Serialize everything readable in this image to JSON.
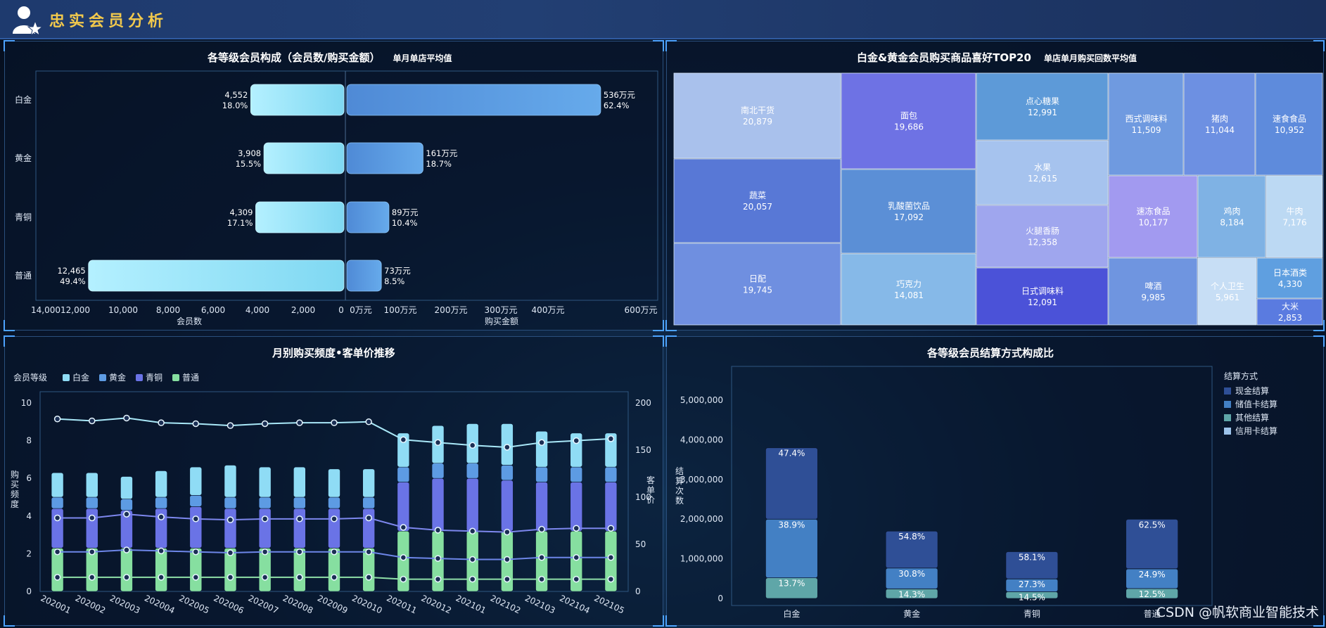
{
  "header": {
    "title": "忠实会员分析"
  },
  "panel1": {
    "title": "各等级会员构成（会员数/购买金额）",
    "subtitle": "单月单店平均值",
    "chart_data": {
      "type": "bar",
      "orientation": "horizontal-butterfly",
      "categories": [
        "白金",
        "黄金",
        "青铜",
        "普通"
      ],
      "left": {
        "name": "会员数",
        "values": [
          4552,
          3908,
          4309,
          12465
        ],
        "value_labels": [
          "4,552",
          "3,908",
          "4,309",
          "12,465"
        ],
        "pct_labels": [
          "18.0%",
          "15.5%",
          "17.1%",
          "49.4%"
        ],
        "ticks": [
          "14,000",
          "12,000",
          "10,000",
          "8,000",
          "6,000",
          "4,000",
          "2,000",
          "0"
        ],
        "xlim": [
          0,
          14000
        ]
      },
      "right": {
        "name": "购买金额",
        "unit": "万元",
        "values": [
          536,
          161,
          89,
          73
        ],
        "value_labels": [
          "536万元",
          "161万元",
          "89万元",
          "73万元"
        ],
        "pct_labels": [
          "62.4%",
          "18.7%",
          "10.4%",
          "8.5%"
        ],
        "ticks": [
          "0万元",
          "100万元",
          "200万元",
          "300万元",
          "400万元",
          "600万元"
        ],
        "tick_values": [
          0,
          100,
          200,
          300,
          400,
          600
        ],
        "xlim": [
          0,
          600
        ]
      },
      "xlabel_left": "会员数",
      "xlabel_right": "购买金额"
    }
  },
  "panel2": {
    "title": "白金&黄金会员购买商品喜好TOP20",
    "subtitle": "单店单月购买回数平均值",
    "chart_data": {
      "type": "treemap",
      "items": [
        {
          "name": "南北干货",
          "value": 20879,
          "label": "20,879",
          "color": "#a9c1ec"
        },
        {
          "name": "蔬菜",
          "value": 20057,
          "label": "20,057",
          "color": "#5878d6"
        },
        {
          "name": "日配",
          "value": 19745,
          "label": "19,745",
          "color": "#6f8fe0"
        },
        {
          "name": "面包",
          "value": 19686,
          "label": "19,686",
          "color": "#6e72e4"
        },
        {
          "name": "乳酸菌饮品",
          "value": 17092,
          "label": "17,092",
          "color": "#5b8fd6"
        },
        {
          "name": "巧克力",
          "value": 14081,
          "label": "14,081",
          "color": "#86b9e8"
        },
        {
          "name": "点心糖果",
          "value": 12991,
          "label": "12,991",
          "color": "#5d9ad8"
        },
        {
          "name": "水果",
          "value": 12615,
          "label": "12,615",
          "color": "#a6c3ee"
        },
        {
          "name": "火腿香肠",
          "value": 12358,
          "label": "12,358",
          "color": "#9fa6ee"
        },
        {
          "name": "日式调味料",
          "value": 12091,
          "label": "12,091",
          "color": "#4b52d8"
        },
        {
          "name": "西式调味料",
          "value": 11509,
          "label": "11,509",
          "color": "#6f9ae0"
        },
        {
          "name": "猪肉",
          "value": 11044,
          "label": "11,044",
          "color": "#6d90e2"
        },
        {
          "name": "速食食品",
          "value": 10952,
          "label": "10,952",
          "color": "#5e8bdc"
        },
        {
          "name": "速冻食品",
          "value": 10177,
          "label": "10,177",
          "color": "#a29af0"
        },
        {
          "name": "鸡肉",
          "value": 8184,
          "label": "8,184",
          "color": "#7fb2e4"
        },
        {
          "name": "牛肉",
          "value": 7176,
          "label": "7,176",
          "color": "#bcd9f3"
        },
        {
          "name": "啤酒",
          "value": 9985,
          "label": "9,985",
          "color": "#6f95e0"
        },
        {
          "name": "个人卫生",
          "value": 5961,
          "label": "5,961",
          "color": "#c7def5"
        },
        {
          "name": "日本酒类",
          "value": 4330,
          "label": "4,330",
          "color": "#5f9fe0"
        },
        {
          "name": "大米",
          "value": 2853,
          "label": "2,853",
          "color": "#5a7be0"
        }
      ]
    }
  },
  "panel3": {
    "title": "月别购买频度•客单价推移",
    "legend_title": "会员等级",
    "legend": [
      {
        "name": "白金",
        "color": "#8fdcf5"
      },
      {
        "name": "黄金",
        "color": "#5d9be3"
      },
      {
        "name": "青铜",
        "color": "#6a73e6"
      },
      {
        "name": "普通",
        "color": "#86dfa0"
      }
    ],
    "chart_data": {
      "type": "bar+line",
      "categories": [
        "202001",
        "202002",
        "202003",
        "202004",
        "202005",
        "202006",
        "202007",
        "202008",
        "202009",
        "202010",
        "202011",
        "202012",
        "202101",
        "202102",
        "202103",
        "202104",
        "202105"
      ],
      "ylabel_left": "购买频度",
      "ylabel_right": "客单价",
      "ylim_left": [
        0,
        10
      ],
      "yticks_left": [
        0,
        2,
        4,
        6,
        8,
        10
      ],
      "ylim_right": [
        0,
        200
      ],
      "yticks_right": [
        0,
        50,
        100,
        150,
        200
      ],
      "stacked_series": [
        {
          "name": "普通",
          "values": [
            2.3,
            2.3,
            2.3,
            2.3,
            2.3,
            2.3,
            2.3,
            2.3,
            2.3,
            2.3,
            3.2,
            3.2,
            3.2,
            3.2,
            3.2,
            3.2,
            3.2
          ]
        },
        {
          "name": "青铜",
          "values": [
            2.1,
            2.1,
            2.0,
            2.1,
            2.2,
            2.1,
            2.1,
            2.1,
            2.1,
            2.1,
            2.6,
            2.8,
            2.8,
            2.7,
            2.6,
            2.6,
            2.6
          ]
        },
        {
          "name": "黄金",
          "values": [
            0.6,
            0.6,
            0.6,
            0.6,
            0.6,
            0.6,
            0.6,
            0.6,
            0.6,
            0.6,
            0.8,
            0.8,
            0.8,
            0.8,
            0.8,
            0.8,
            0.8
          ]
        },
        {
          "name": "白金",
          "values": [
            1.3,
            1.3,
            1.2,
            1.4,
            1.5,
            1.7,
            1.6,
            1.6,
            1.5,
            1.5,
            1.8,
            2.0,
            2.1,
            2.2,
            1.9,
            1.8,
            1.8
          ]
        }
      ],
      "lines": [
        {
          "name": "白金",
          "values": [
            183,
            181,
            184,
            179,
            178,
            176,
            178,
            179,
            179,
            180,
            161,
            158,
            155,
            153,
            158,
            160,
            162
          ]
        },
        {
          "name": "青铜",
          "values": [
            78,
            78,
            82,
            79,
            77,
            76,
            77,
            77,
            77,
            78,
            68,
            65,
            64,
            63,
            66,
            67,
            67
          ]
        },
        {
          "name": "黄金",
          "values": [
            42,
            42,
            44,
            43,
            42,
            41,
            42,
            42,
            42,
            42,
            36,
            35,
            34,
            34,
            36,
            36,
            36
          ]
        },
        {
          "name": "普通",
          "values": [
            15,
            15,
            15,
            15,
            15,
            15,
            15,
            15,
            15,
            15,
            13,
            13,
            13,
            13,
            13,
            13,
            13
          ]
        }
      ]
    }
  },
  "panel4": {
    "title": "各等级会员结算方式构成比",
    "legend_title": "结算方式",
    "chart_data": {
      "type": "bar",
      "stacked": true,
      "categories": [
        "白金",
        "黄金",
        "青铜",
        "普通"
      ],
      "ylabel": "结算次数",
      "ylim": [
        0,
        5000000
      ],
      "yticks": [
        "0",
        "1,000,000",
        "2,000,000",
        "3,000,000",
        "4,000,000",
        "5,000,000"
      ],
      "totals": [
        3800000,
        1700000,
        1180000,
        2000000
      ],
      "series": [
        {
          "name": "现金结算",
          "color": "#2f4f96",
          "pcts": [
            47.4,
            54.8,
            58.1,
            62.5
          ],
          "labels": [
            "47.4%",
            "54.8%",
            "58.1%",
            "62.5%"
          ]
        },
        {
          "name": "储值卡结算",
          "color": "#4380c4",
          "pcts": [
            38.9,
            30.8,
            27.3,
            24.9
          ],
          "labels": [
            "38.9%",
            "30.8%",
            "27.3%",
            "24.9%"
          ]
        },
        {
          "name": "其他结算",
          "color": "#5fa6a8",
          "pcts": [
            13.7,
            14.3,
            14.5,
            12.5
          ],
          "labels": [
            "13.7%",
            "14.3%",
            "14.5%",
            "12.5%"
          ]
        },
        {
          "name": "信用卡结算",
          "color": "#9cc3ea",
          "pcts": [
            0,
            0,
            0,
            0
          ],
          "labels": [
            "",
            "",
            "",
            ""
          ]
        }
      ]
    }
  },
  "watermark": "CSDN @帆软商业智能技术"
}
